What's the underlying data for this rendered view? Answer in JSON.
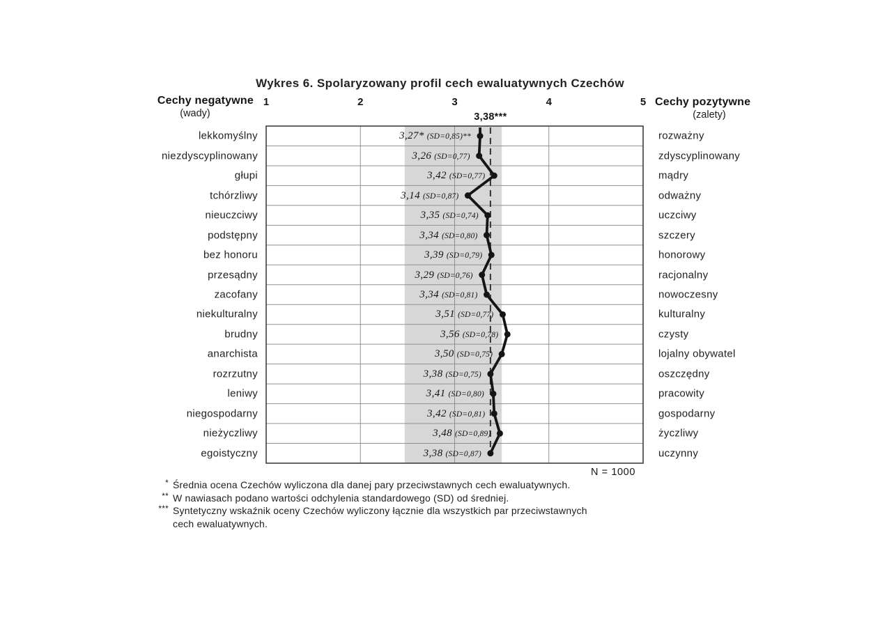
{
  "title": "Wykres 6. Spolaryzowany profil cech ewaluatywnych Czechów",
  "chart_data": {
    "type": "line",
    "description": "Polarized profile of evaluative traits; mean ratings on a 1-5 scale between negative (left) and positive (right) trait poles",
    "axis": {
      "min": 1,
      "max": 5,
      "ticks": [
        1,
        2,
        3,
        4,
        5
      ]
    },
    "headers": {
      "left_title": "Cechy negatywne",
      "left_subtitle": "(wady)",
      "right_title": "Cechy pozytywne",
      "right_subtitle": "(zalety)"
    },
    "synthetic_index": {
      "label": "3,38***",
      "value": 3.38
    },
    "shaded_band": {
      "from": 2.47,
      "to": 3.5
    },
    "sample_size_label": "N = 1000",
    "rows": [
      {
        "negative": "lekkomyślny",
        "positive": "rozważny",
        "value": 3.27,
        "value_label": "3,27*",
        "sd_label": "(SD=0,85)**"
      },
      {
        "negative": "niezdyscyplinowany",
        "positive": "zdyscyplinowany",
        "value": 3.26,
        "value_label": "3,26",
        "sd_label": "(SD=0,77)"
      },
      {
        "negative": "głupi",
        "positive": "mądry",
        "value": 3.42,
        "value_label": "3,42",
        "sd_label": "(SD=0,77)"
      },
      {
        "negative": "tchórzliwy",
        "positive": "odważny",
        "value": 3.14,
        "value_label": "3,14",
        "sd_label": "(SD=0,87)"
      },
      {
        "negative": "nieuczciwy",
        "positive": "uczciwy",
        "value": 3.35,
        "value_label": "3,35",
        "sd_label": "(SD=0,74)"
      },
      {
        "negative": "podstępny",
        "positive": "szczery",
        "value": 3.34,
        "value_label": "3,34",
        "sd_label": "(SD=0,80)"
      },
      {
        "negative": "bez honoru",
        "positive": "honorowy",
        "value": 3.39,
        "value_label": "3,39",
        "sd_label": "(SD=0,79)"
      },
      {
        "negative": "przesądny",
        "positive": "racjonalny",
        "value": 3.29,
        "value_label": "3,29",
        "sd_label": "(SD=0,76)"
      },
      {
        "negative": "zacofany",
        "positive": "nowoczesny",
        "value": 3.34,
        "value_label": "3,34",
        "sd_label": "(SD=0,81)"
      },
      {
        "negative": "niekulturalny",
        "positive": "kulturalny",
        "value": 3.51,
        "value_label": "3,51",
        "sd_label": "(SD=0,77)"
      },
      {
        "negative": "brudny",
        "positive": "czysty",
        "value": 3.56,
        "value_label": "3,56",
        "sd_label": "(SD=0,78)"
      },
      {
        "negative": "anarchista",
        "positive": "lojalny obywatel",
        "value": 3.5,
        "value_label": "3,50",
        "sd_label": "(SD=0,75)"
      },
      {
        "negative": "rozrzutny",
        "positive": "oszczędny",
        "value": 3.38,
        "value_label": "3,38",
        "sd_label": "(SD=0,75)"
      },
      {
        "negative": "leniwy",
        "positive": "pracowity",
        "value": 3.41,
        "value_label": "3,41",
        "sd_label": "(SD=0,80)"
      },
      {
        "negative": "niegospodarny",
        "positive": "gospodarny",
        "value": 3.42,
        "value_label": "3,42",
        "sd_label": "(SD=0,81)"
      },
      {
        "negative": "nieżyczliwy",
        "positive": "życzliwy",
        "value": 3.48,
        "value_label": "3,48",
        "sd_label": "(SD=0,89)"
      },
      {
        "negative": "egoistyczny",
        "positive": "uczynny",
        "value": 3.38,
        "value_label": "3,38",
        "sd_label": "(SD=0,87)"
      }
    ]
  },
  "footnotes": [
    {
      "marker": "*",
      "lines": [
        "Średnia ocena Czechów  wyliczona dla danej pary przeciwstawnych cech ewaluatywnych."
      ]
    },
    {
      "marker": "**",
      "lines": [
        "W nawiasach podano wartości odchylenia standardowego (SD) od średniej."
      ]
    },
    {
      "marker": "***",
      "lines": [
        "Syntetyczny wskaźnik oceny Czechów wyliczony  łącznie dla wszystkich par przeciwstawnych",
        "cech ewaluatywnych."
      ]
    }
  ],
  "colors": {
    "ink": "#1b1b1b",
    "grid": "#8f8f8f",
    "box_border": "#3e3e3e",
    "band": "#d7d7d7",
    "line": "#151515",
    "dashed": "#333333"
  }
}
